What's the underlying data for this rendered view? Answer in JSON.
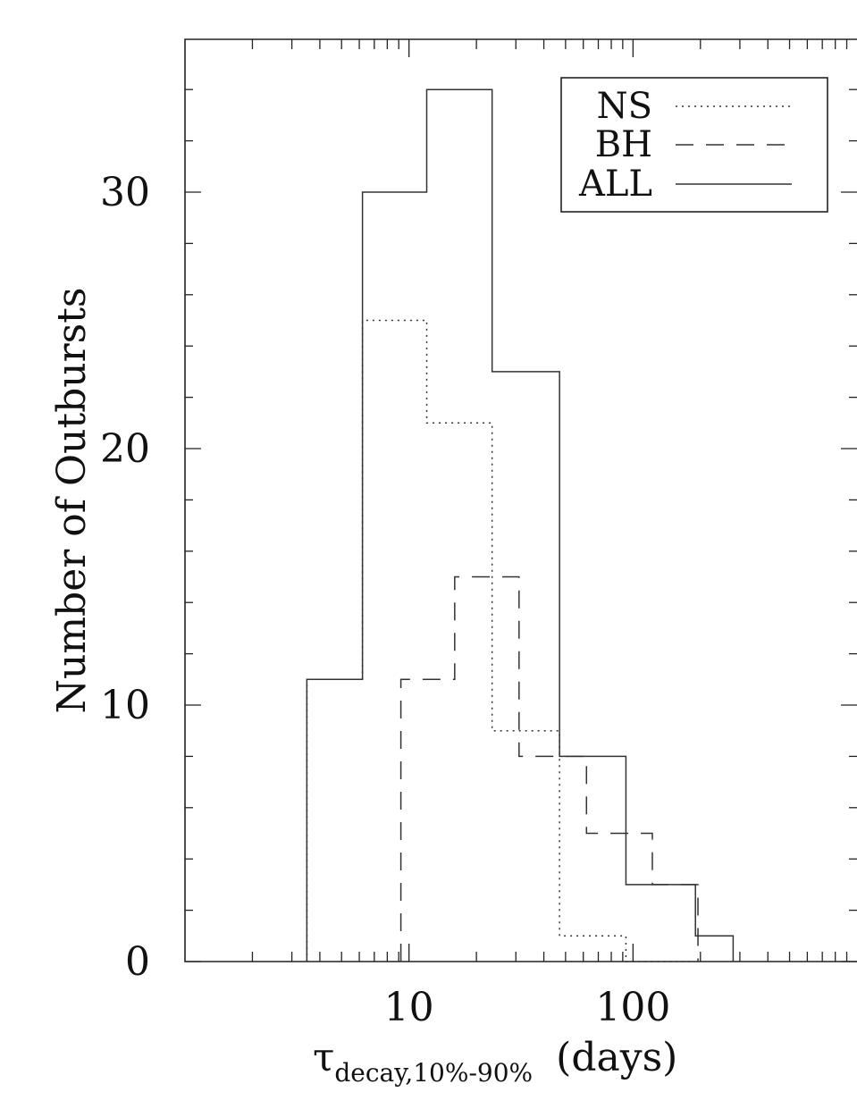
{
  "chart_data": {
    "type": "histogram-step",
    "xscale": "log",
    "xlim": [
      1,
      1000
    ],
    "ylim": [
      0,
      36
    ],
    "ylabel": "Number of Outbursts",
    "xlabel": {
      "symbol": "τ",
      "subscript": "decay,10%-90%",
      "unit": "(days)"
    },
    "xticks": [
      10,
      100
    ],
    "xtick_labels": [
      "10",
      "100"
    ],
    "yticks": [
      0,
      10,
      20,
      30
    ],
    "ytick_labels": [
      "0",
      "10",
      "20",
      "30"
    ],
    "legend": {
      "position": "top-right",
      "entries": [
        {
          "label": "NS",
          "style": "dotted"
        },
        {
          "label": "BH",
          "style": "dashed"
        },
        {
          "label": "ALL",
          "style": "solid"
        }
      ]
    },
    "series": [
      {
        "name": "ALL",
        "style": "solid",
        "edges": [
          3.5,
          6.2,
          12.0,
          23.5,
          47.0,
          93.0,
          190.0,
          280.0
        ],
        "counts": [
          11,
          30,
          34,
          23,
          8,
          3,
          1
        ]
      },
      {
        "name": "NS",
        "style": "dotted",
        "edges": [
          3.5,
          6.2,
          12.0,
          23.5,
          47.0,
          93.0,
          180.0
        ],
        "counts": [
          11,
          25,
          21,
          9,
          1,
          0
        ]
      },
      {
        "name": "BH",
        "style": "dashed",
        "edges": [
          9.2,
          16.0,
          31.0,
          62.0,
          122.0,
          195.0
        ],
        "counts": [
          11,
          15,
          8,
          5,
          3
        ]
      }
    ],
    "grid": false
  }
}
